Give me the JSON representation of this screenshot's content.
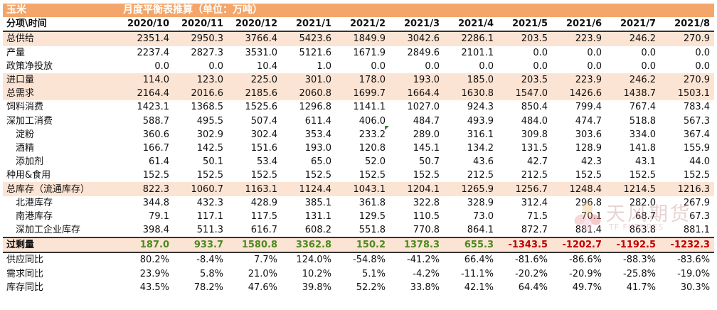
{
  "title": {
    "product": "玉米",
    "table_title": "月度平衡表推算（单位：万吨）"
  },
  "header": {
    "label": "分项\\时间",
    "months": [
      "2020/10",
      "2020/11",
      "2020/12",
      "2021/1",
      "2021/2",
      "2021/3",
      "2021/4",
      "2021/5",
      "2021/6",
      "2021/7",
      "2021/8"
    ]
  },
  "rows": [
    {
      "label": "总供给",
      "style": "peach",
      "values": [
        "2351.4",
        "2950.3",
        "3766.4",
        "5423.6",
        "1849.9",
        "3042.6",
        "2286.1",
        "203.5",
        "223.9",
        "246.2",
        "270.9"
      ]
    },
    {
      "label": "产量",
      "values": [
        "2237.4",
        "2827.3",
        "3531.0",
        "5121.6",
        "1671.9",
        "2849.6",
        "2101.1",
        "0.0",
        "0.0",
        "0.0",
        "0.0"
      ]
    },
    {
      "label": "政策净投放",
      "values": [
        "0.0",
        "0.0",
        "10.4",
        "1.0",
        "0.0",
        "0.0",
        "0.0",
        "0.0",
        "0.0",
        "0.0",
        "0.0"
      ]
    },
    {
      "label": "进口量",
      "style": "peach",
      "values": [
        "114.0",
        "123.0",
        "225.0",
        "301.0",
        "178.0",
        "193.0",
        "185.0",
        "203.5",
        "223.9",
        "246.2",
        "270.9"
      ]
    },
    {
      "label": "总需求",
      "style": "peach",
      "values": [
        "2164.4",
        "2016.6",
        "2185.6",
        "2060.8",
        "1699.7",
        "1664.4",
        "1630.8",
        "1547.0",
        "1426.6",
        "1438.7",
        "1503.1"
      ]
    },
    {
      "label": "饲料消费",
      "values": [
        "1423.1",
        "1368.5",
        "1525.6",
        "1296.8",
        "1141.1",
        "1027.0",
        "924.3",
        "850.4",
        "799.4",
        "767.4",
        "783.4"
      ]
    },
    {
      "label": "深加工消费",
      "values": [
        "588.7",
        "495.5",
        "507.4",
        "611.4",
        "406.0",
        "484.7",
        "493.9",
        "484.0",
        "474.7",
        "518.8",
        "567.3"
      ]
    },
    {
      "label": "淀粉",
      "indent": true,
      "values": [
        "360.6",
        "302.9",
        "302.4",
        "353.4",
        "233.2",
        "289.0",
        "316.1",
        "309.8",
        "303.6",
        "334.0",
        "367.4"
      ]
    },
    {
      "label": "酒精",
      "indent": true,
      "values": [
        "166.7",
        "142.5",
        "151.6",
        "193.0",
        "120.8",
        "145.1",
        "134.2",
        "131.5",
        "128.9",
        "141.8",
        "155.9"
      ]
    },
    {
      "label": "添加剂",
      "indent": true,
      "values": [
        "61.4",
        "50.1",
        "53.4",
        "65.0",
        "52.0",
        "50.7",
        "43.6",
        "42.7",
        "42.3",
        "43.1",
        "44.0"
      ]
    },
    {
      "label": "种用&食用",
      "values": [
        "152.5",
        "152.5",
        "152.5",
        "152.5",
        "152.5",
        "152.5",
        "212.5",
        "212.5",
        "152.5",
        "152.5",
        "152.5"
      ]
    },
    {
      "label": "总库存（流通库存）",
      "style": "peach",
      "values": [
        "822.3",
        "1060.7",
        "1163.1",
        "1124.4",
        "1043.1",
        "1204.1",
        "1265.9",
        "1256.7",
        "1248.4",
        "1214.5",
        "1216.3"
      ]
    },
    {
      "label": "北港库存",
      "indent": true,
      "values": [
        "344.8",
        "432.3",
        "428.9",
        "385.1",
        "361.8",
        "322.8",
        "328.9",
        "312.4",
        "296.8",
        "282.0",
        "267.9"
      ]
    },
    {
      "label": "南港库存",
      "indent": true,
      "values": [
        "79.1",
        "117.1",
        "117.5",
        "131.1",
        "129.5",
        "110.5",
        "73.0",
        "71.5",
        "70.1",
        "68.7",
        "67.3"
      ]
    },
    {
      "label": "深加工企业库存",
      "indent": true,
      "values": [
        "398.4",
        "511.3",
        "616.7",
        "608.2",
        "551.8",
        "770.8",
        "864.1",
        "872.7",
        "881.4",
        "863.8",
        "881.1"
      ]
    },
    {
      "label": "过剩量",
      "style": "surplus",
      "values": [
        "187.0",
        "933.7",
        "1580.8",
        "3362.8",
        "150.2",
        "1378.3",
        "655.3",
        "-1343.5",
        "-1202.7",
        "-1192.5",
        "-1232.3"
      ]
    },
    {
      "label": "供应同比",
      "values": [
        "80.2%",
        "-8.4%",
        "7.7%",
        "124.0%",
        "-54.8%",
        "-41.2%",
        "66.4%",
        "-81.6%",
        "-86.6%",
        "-88.3%",
        "-83.6%"
      ]
    },
    {
      "label": "需求同比",
      "values": [
        "23.9%",
        "5.8%",
        "21.0%",
        "10.2%",
        "5.1%",
        "-4.2%",
        "-11.1%",
        "-20.2%",
        "-20.9%",
        "-25.8%",
        "-19.0%"
      ]
    },
    {
      "label": "库存同比",
      "values": [
        "43.5%",
        "78.2%",
        "47.6%",
        "39.8%",
        "52.2%",
        "33.8%",
        "42.1%",
        "64.4%",
        "49.7%",
        "41.7%",
        "30.3%"
      ]
    }
  ],
  "colors": {
    "title_bg": "#f4a66a",
    "peach_bg": "#fce4d4",
    "positive": "#4c8a1f",
    "negative": "#c00000"
  },
  "watermark": {
    "text": "天风期货",
    "sub": "TF FUTURES",
    "icon": "tianfeng-flower-logo"
  }
}
